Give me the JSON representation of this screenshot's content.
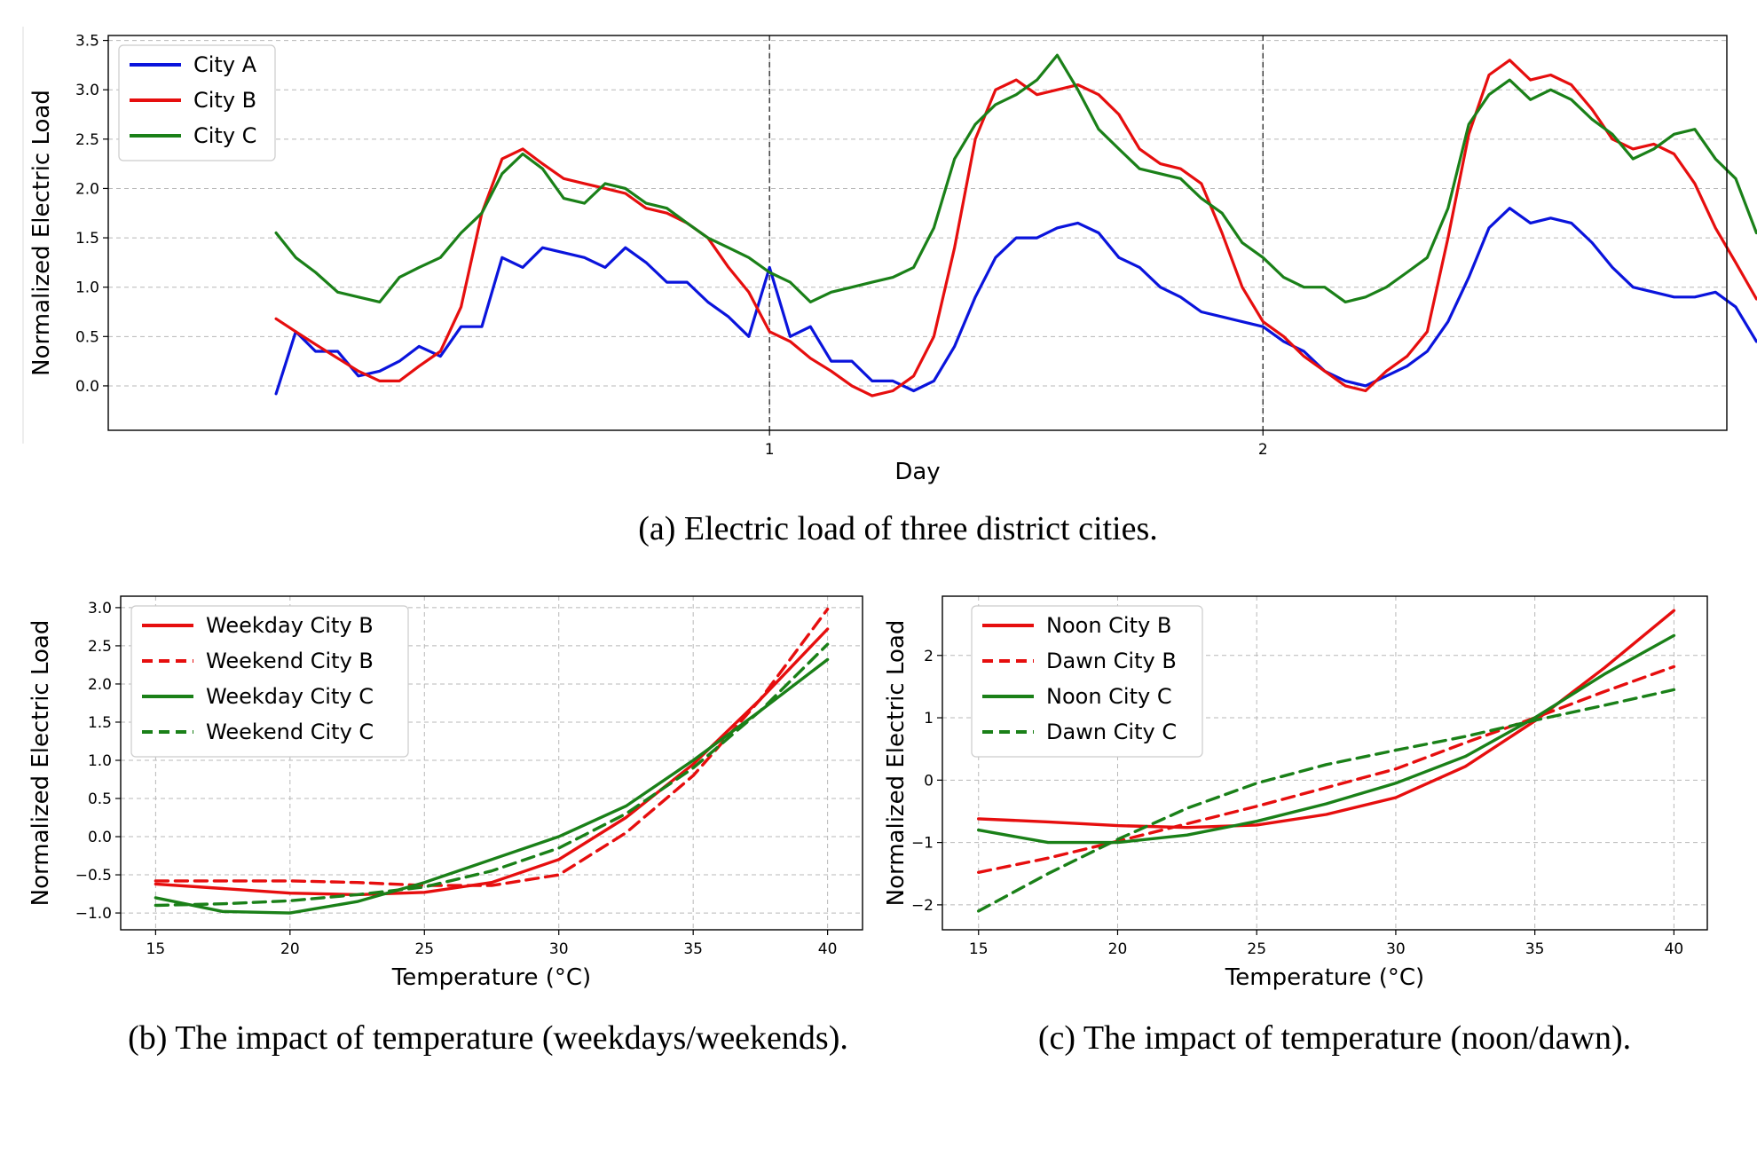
{
  "chart_data": [
    {
      "id": "a",
      "type": "line",
      "title": "",
      "caption": "(a) Electric load of three district cities.",
      "xlabel": "Day",
      "ylabel": "Normalized Electric Load",
      "xlim": [
        -0.34,
        2.94
      ],
      "ylim": [
        -0.45,
        3.55
      ],
      "xticks": [
        1,
        2
      ],
      "xtick_labels": [
        "1",
        "2"
      ],
      "yticks": [
        0.0,
        0.5,
        1.0,
        1.5,
        2.0,
        2.5,
        3.0,
        3.5
      ],
      "ytick_labels": [
        "0.0",
        "0.5",
        "1.0",
        "1.5",
        "2.0",
        "2.5",
        "3.0",
        "3.5"
      ],
      "vlines": [
        1,
        2
      ],
      "grid": true,
      "legend_position": "top-left",
      "colors": {
        "City A": "#0a14dc",
        "City B": "#e60e0e",
        "City C": "#1a8018"
      },
      "series": [
        {
          "name": "City A",
          "x": [
            0.0,
            0.04,
            0.08,
            0.125,
            0.167,
            0.21,
            0.25,
            0.29,
            0.333,
            0.375,
            0.417,
            0.458,
            0.5,
            0.54,
            0.583,
            0.625,
            0.667,
            0.708,
            0.75,
            0.792,
            0.833,
            0.875,
            0.917,
            0.958,
            1.0,
            1.042,
            1.083,
            1.125,
            1.167,
            1.208,
            1.25,
            1.292,
            1.333,
            1.375,
            1.417,
            1.458,
            1.5,
            1.542,
            1.583,
            1.625,
            1.667,
            1.708,
            1.75,
            1.792,
            1.833,
            1.875,
            1.917,
            1.958,
            2.0,
            2.042,
            2.083,
            2.125,
            2.167,
            2.208,
            2.25,
            2.292,
            2.333,
            2.375,
            2.417,
            2.458,
            2.5,
            2.542,
            2.583,
            2.625,
            2.667,
            2.708,
            2.75,
            2.792,
            2.833,
            2.875,
            2.917,
            2.958,
            3.0
          ],
          "y": [
            -0.08,
            0.55,
            0.35,
            0.35,
            0.1,
            0.15,
            0.25,
            0.4,
            0.3,
            0.6,
            0.6,
            1.3,
            1.2,
            1.4,
            1.35,
            1.3,
            1.2,
            1.4,
            1.25,
            1.05,
            1.05,
            0.85,
            0.7,
            0.5,
            1.2,
            0.5,
            0.6,
            0.25,
            0.25,
            0.05,
            0.05,
            -0.05,
            0.05,
            0.4,
            0.9,
            1.3,
            1.5,
            1.5,
            1.6,
            1.65,
            1.55,
            1.3,
            1.2,
            1.0,
            0.9,
            0.75,
            0.7,
            0.65,
            0.6,
            0.45,
            0.35,
            0.15,
            0.05,
            0.0,
            0.1,
            0.2,
            0.35,
            0.65,
            1.1,
            1.6,
            1.8,
            1.65,
            1.7,
            1.65,
            1.45,
            1.2,
            1.0,
            0.95,
            0.9,
            0.9,
            0.95,
            0.8,
            0.45
          ]
        },
        {
          "name": "City B",
          "x": [
            0.0,
            0.04,
            0.08,
            0.125,
            0.167,
            0.21,
            0.25,
            0.29,
            0.333,
            0.375,
            0.417,
            0.458,
            0.5,
            0.54,
            0.583,
            0.625,
            0.667,
            0.708,
            0.75,
            0.792,
            0.833,
            0.875,
            0.917,
            0.958,
            1.0,
            1.042,
            1.083,
            1.125,
            1.167,
            1.208,
            1.25,
            1.292,
            1.333,
            1.375,
            1.417,
            1.458,
            1.5,
            1.542,
            1.583,
            1.625,
            1.667,
            1.708,
            1.75,
            1.792,
            1.833,
            1.875,
            1.917,
            1.958,
            2.0,
            2.042,
            2.083,
            2.125,
            2.167,
            2.208,
            2.25,
            2.292,
            2.333,
            2.375,
            2.417,
            2.458,
            2.5,
            2.542,
            2.583,
            2.625,
            2.667,
            2.708,
            2.75,
            2.792,
            2.833,
            2.875,
            2.917,
            2.958,
            3.0
          ],
          "y": [
            0.68,
            0.55,
            0.42,
            0.28,
            0.15,
            0.05,
            0.05,
            0.2,
            0.35,
            0.8,
            1.75,
            2.3,
            2.4,
            2.25,
            2.1,
            2.05,
            2.0,
            1.95,
            1.8,
            1.75,
            1.65,
            1.5,
            1.2,
            0.95,
            0.55,
            0.45,
            0.28,
            0.15,
            0.0,
            -0.1,
            -0.05,
            0.1,
            0.5,
            1.4,
            2.5,
            3.0,
            3.1,
            2.95,
            3.0,
            3.05,
            2.95,
            2.75,
            2.4,
            2.25,
            2.2,
            2.05,
            1.55,
            1.0,
            0.65,
            0.5,
            0.3,
            0.15,
            0.0,
            -0.05,
            0.15,
            0.3,
            0.55,
            1.5,
            2.55,
            3.15,
            3.3,
            3.1,
            3.15,
            3.05,
            2.8,
            2.5,
            2.4,
            2.45,
            2.35,
            2.05,
            1.6,
            1.25,
            0.88
          ]
        },
        {
          "name": "City C",
          "x": [
            0.0,
            0.04,
            0.08,
            0.125,
            0.167,
            0.21,
            0.25,
            0.29,
            0.333,
            0.375,
            0.417,
            0.458,
            0.5,
            0.54,
            0.583,
            0.625,
            0.667,
            0.708,
            0.75,
            0.792,
            0.833,
            0.875,
            0.917,
            0.958,
            1.0,
            1.042,
            1.083,
            1.125,
            1.167,
            1.208,
            1.25,
            1.292,
            1.333,
            1.375,
            1.417,
            1.458,
            1.5,
            1.542,
            1.583,
            1.625,
            1.667,
            1.708,
            1.75,
            1.792,
            1.833,
            1.875,
            1.917,
            1.958,
            2.0,
            2.042,
            2.083,
            2.125,
            2.167,
            2.208,
            2.25,
            2.292,
            2.333,
            2.375,
            2.417,
            2.458,
            2.5,
            2.542,
            2.583,
            2.625,
            2.667,
            2.708,
            2.75,
            2.792,
            2.833,
            2.875,
            2.917,
            2.958,
            3.0
          ],
          "y": [
            1.55,
            1.3,
            1.15,
            0.95,
            0.9,
            0.85,
            1.1,
            1.2,
            1.3,
            1.55,
            1.75,
            2.15,
            2.35,
            2.2,
            1.9,
            1.85,
            2.05,
            2.0,
            1.85,
            1.8,
            1.65,
            1.5,
            1.4,
            1.3,
            1.15,
            1.05,
            0.85,
            0.95,
            1.0,
            1.05,
            1.1,
            1.2,
            1.6,
            2.3,
            2.65,
            2.85,
            2.95,
            3.1,
            3.35,
            3.0,
            2.6,
            2.4,
            2.2,
            2.15,
            2.1,
            1.9,
            1.75,
            1.45,
            1.3,
            1.1,
            1.0,
            1.0,
            0.85,
            0.9,
            1.0,
            1.15,
            1.3,
            1.8,
            2.65,
            2.95,
            3.1,
            2.9,
            3.0,
            2.9,
            2.7,
            2.55,
            2.3,
            2.4,
            2.55,
            2.6,
            2.3,
            2.1,
            1.55
          ]
        }
      ]
    },
    {
      "id": "b",
      "type": "line",
      "title": "",
      "caption": "(b) The impact of temperature (weekdays/weekends).",
      "xlabel": "Temperature (°C)",
      "ylabel": "Normalized Electric Load",
      "xlim": [
        13.7,
        41.3
      ],
      "ylim": [
        -1.22,
        3.15
      ],
      "xticks": [
        15,
        20,
        25,
        30,
        35,
        40
      ],
      "xtick_labels": [
        "15",
        "20",
        "25",
        "30",
        "35",
        "40"
      ],
      "yticks": [
        -1.0,
        -0.5,
        0.0,
        0.5,
        1.0,
        1.5,
        2.0,
        2.5,
        3.0
      ],
      "ytick_labels": [
        "−1.0",
        "−0.5",
        "0.0",
        "0.5",
        "1.0",
        "1.5",
        "2.0",
        "2.5",
        "3.0"
      ],
      "grid": true,
      "legend_position": "top-left",
      "colors": {
        "red": "#e60e0e",
        "green": "#1a8018"
      },
      "series": [
        {
          "name": "Weekday City B",
          "style": "solid",
          "x": [
            15,
            17.5,
            20,
            22.5,
            25,
            27.5,
            30,
            32.5,
            35,
            37.5,
            40
          ],
          "y": [
            -0.62,
            -0.68,
            -0.74,
            -0.76,
            -0.73,
            -0.6,
            -0.3,
            0.25,
            0.95,
            1.8,
            2.72
          ]
        },
        {
          "name": "Weekend City B",
          "style": "dashed",
          "x": [
            15,
            17.5,
            20,
            22.5,
            25,
            27.5,
            30,
            32.5,
            35,
            37.5,
            40
          ],
          "y": [
            -0.58,
            -0.58,
            -0.58,
            -0.6,
            -0.64,
            -0.64,
            -0.5,
            0.05,
            0.8,
            1.8,
            2.98
          ]
        },
        {
          "name": "Weekday City C",
          "style": "solid",
          "x": [
            15,
            17.5,
            20,
            22.5,
            25,
            27.5,
            30,
            32.5,
            35,
            37.5,
            40
          ],
          "y": [
            -0.8,
            -0.98,
            -1.0,
            -0.85,
            -0.6,
            -0.3,
            0.0,
            0.4,
            1.0,
            1.65,
            2.32
          ]
        },
        {
          "name": "Weekend City C",
          "style": "dashed",
          "x": [
            15,
            17.5,
            20,
            22.5,
            25,
            27.5,
            30,
            32.5,
            35,
            37.5,
            40
          ],
          "y": [
            -0.9,
            -0.88,
            -0.84,
            -0.76,
            -0.66,
            -0.45,
            -0.15,
            0.3,
            0.9,
            1.65,
            2.52
          ]
        }
      ]
    },
    {
      "id": "c",
      "type": "line",
      "title": "",
      "caption": "(c) The impact of temperature (noon/dawn).",
      "xlabel": "Temperature (°C)",
      "ylabel": "Normalized Electric Load",
      "xlim": [
        13.7,
        41.2
      ],
      "ylim": [
        -2.4,
        2.95
      ],
      "xticks": [
        15,
        20,
        25,
        30,
        35,
        40
      ],
      "xtick_labels": [
        "15",
        "20",
        "25",
        "30",
        "35",
        "40"
      ],
      "yticks": [
        -2,
        -1,
        0,
        1,
        2
      ],
      "ytick_labels": [
        "−2",
        "−1",
        "0",
        "1",
        "2"
      ],
      "grid": true,
      "legend_position": "top-left",
      "colors": {
        "red": "#e60e0e",
        "green": "#1a8018"
      },
      "series": [
        {
          "name": "Noon City B",
          "style": "solid",
          "x": [
            15,
            17.5,
            20,
            22.5,
            25,
            27.5,
            30,
            32.5,
            35,
            37.5,
            40
          ],
          "y": [
            -0.62,
            -0.67,
            -0.73,
            -0.76,
            -0.72,
            -0.55,
            -0.28,
            0.22,
            0.95,
            1.8,
            2.72
          ]
        },
        {
          "name": "Dawn City B",
          "style": "dashed",
          "x": [
            15,
            17.5,
            20,
            22.5,
            25,
            27.5,
            30,
            32.5,
            35,
            37.5,
            40
          ],
          "y": [
            -1.48,
            -1.25,
            -0.98,
            -0.7,
            -0.42,
            -0.12,
            0.18,
            0.6,
            1.0,
            1.42,
            1.82
          ]
        },
        {
          "name": "Noon City C",
          "style": "solid",
          "x": [
            15,
            17.5,
            20,
            22.5,
            25,
            27.5,
            30,
            32.5,
            35,
            37.5,
            40
          ],
          "y": [
            -0.8,
            -1.0,
            -1.0,
            -0.88,
            -0.66,
            -0.38,
            -0.05,
            0.38,
            1.0,
            1.7,
            2.32
          ]
        },
        {
          "name": "Dawn City C",
          "style": "dashed",
          "x": [
            15,
            17.5,
            20,
            22.5,
            25,
            27.5,
            30,
            32.5,
            35,
            37.5,
            40
          ],
          "y": [
            -2.1,
            -1.5,
            -0.95,
            -0.45,
            -0.05,
            0.25,
            0.48,
            0.7,
            0.96,
            1.2,
            1.45
          ]
        }
      ]
    }
  ]
}
